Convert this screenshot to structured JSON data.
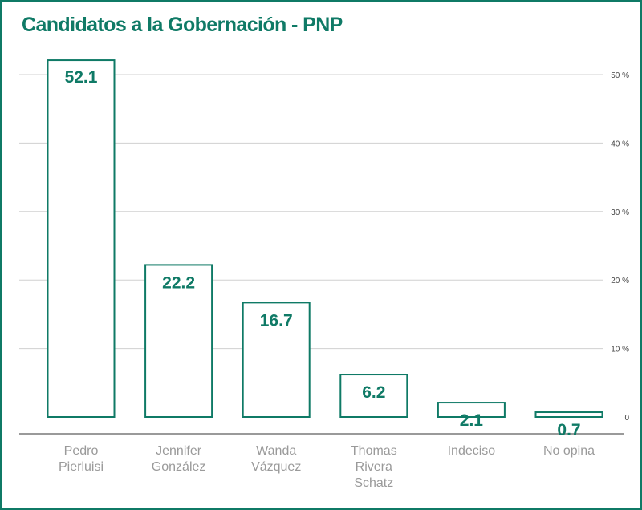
{
  "title": "Candidatos a la Gobernación - PNP",
  "colors": {
    "accent": "#0f7a66",
    "grid": "#d0d0d0",
    "axis": "#9a9a9a",
    "category_text": "#9a9a9a"
  },
  "chart_data": {
    "type": "bar",
    "title": "Candidatos a la Gobernación - PNP",
    "categories": [
      [
        "Pedro",
        "Pierluisi"
      ],
      [
        "Jennifer",
        "González"
      ],
      [
        "Wanda",
        "Vázquez"
      ],
      [
        "Thomas",
        "Rivera",
        "Schatz"
      ],
      [
        "Indeciso"
      ],
      [
        "No opina"
      ]
    ],
    "values": [
      52.1,
      22.2,
      16.7,
      6.2,
      2.1,
      0.7
    ],
    "value_labels": [
      "52.1",
      "22.2",
      "16.7",
      "6.2",
      "2.1",
      "0.7"
    ],
    "ylim": [
      0,
      50
    ],
    "y_ticks": [
      0,
      10,
      20,
      30,
      40,
      50
    ],
    "y_tick_labels": [
      "0",
      "10 %",
      "20 %",
      "30 %",
      "40 %",
      "50 %"
    ],
    "y_axis_position": "right",
    "grid": true,
    "xlabel": "",
    "ylabel": ""
  }
}
